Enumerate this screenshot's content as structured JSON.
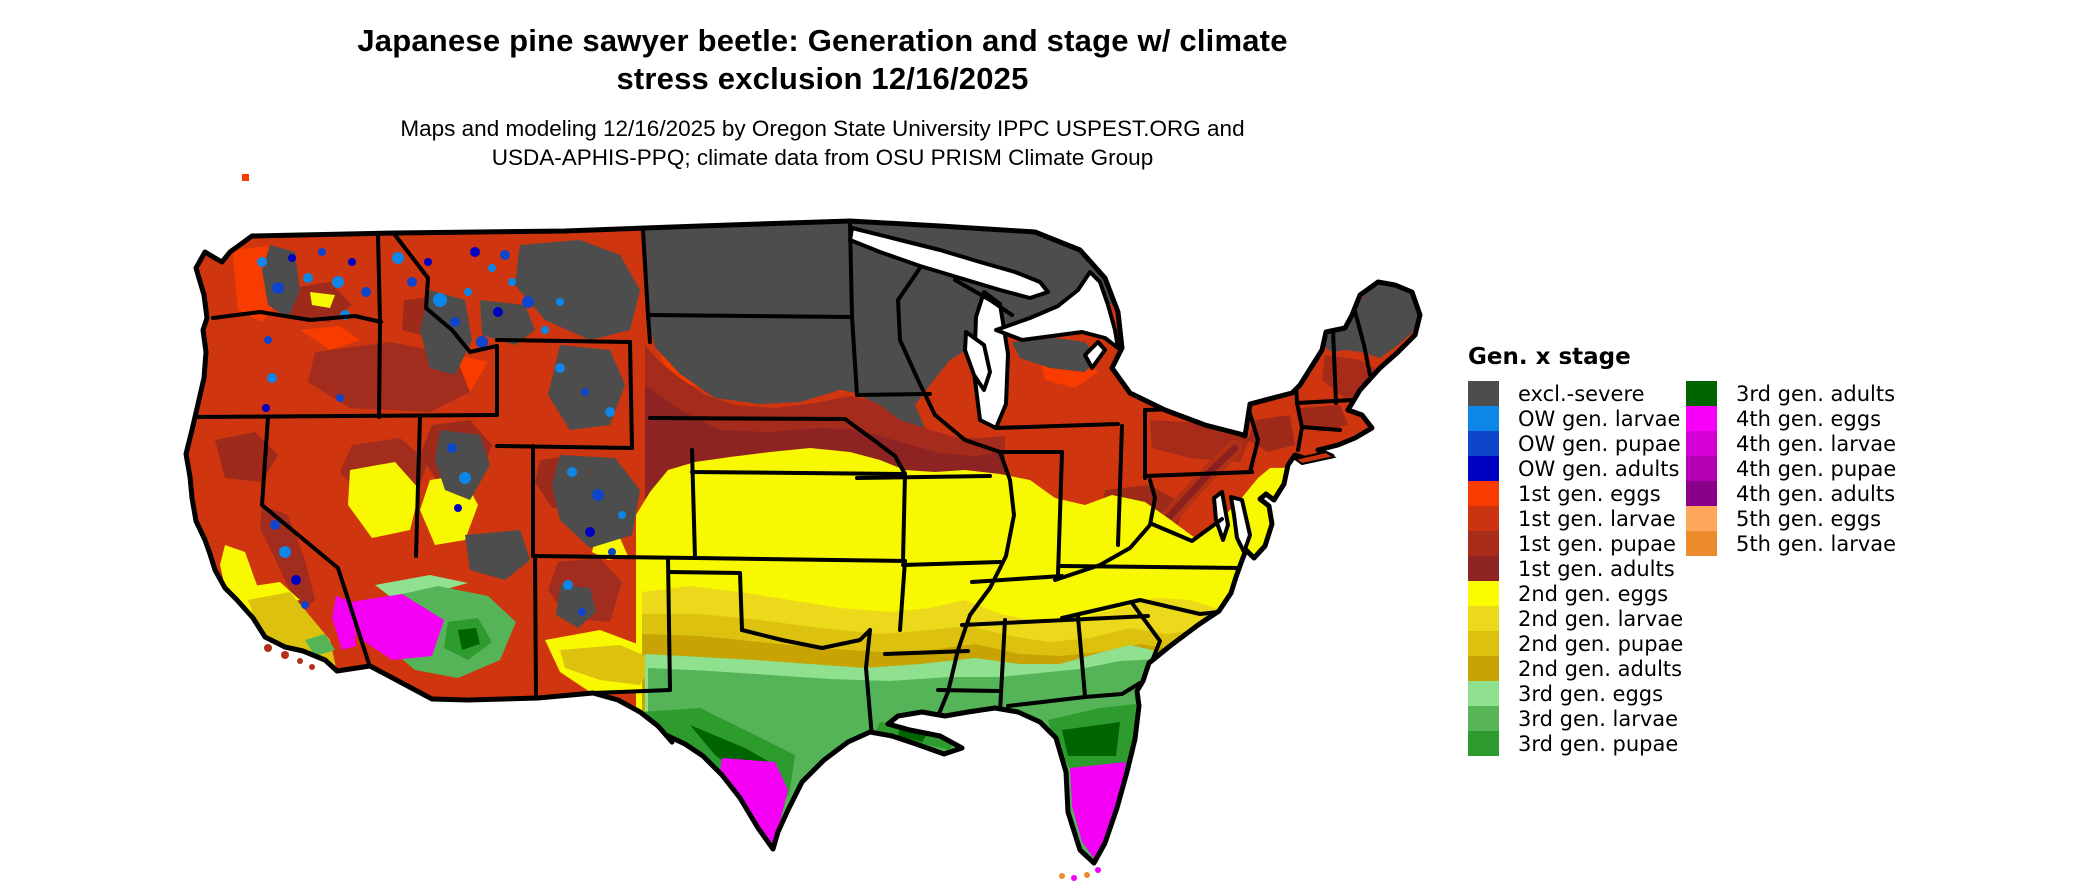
{
  "title": {
    "line1": "Japanese pine sawyer beetle: Generation and stage w/ climate",
    "line2": "stress exclusion 12/16/2025"
  },
  "subtitle": {
    "line1": "Maps and modeling 12/16/2025 by Oregon State University IPPC USPEST.ORG and",
    "line2": "USDA-APHIS-PPQ; climate data from OSU PRISM Climate Group"
  },
  "legend": {
    "title": "Gen. x stage",
    "column1": [
      {
        "label": "excl.-severe",
        "color": "#4D4D4D"
      },
      {
        "label": "OW gen. larvae",
        "color": "#0D86E8"
      },
      {
        "label": "OW gen. pupae",
        "color": "#0F45CC"
      },
      {
        "label": "OW gen. adults",
        "color": "#0000C0"
      },
      {
        "label": "1st gen. eggs",
        "color": "#F83C00"
      },
      {
        "label": "1st gen. larvae",
        "color": "#CC3311"
      },
      {
        "label": "1st gen. pupae",
        "color": "#A92C1B"
      },
      {
        "label": "1st gen. adults",
        "color": "#8E2323"
      },
      {
        "label": "2nd gen. eggs",
        "color": "#FCFC00"
      },
      {
        "label": "2nd gen. larvae",
        "color": "#EDD91C"
      },
      {
        "label": "2nd gen. pupae",
        "color": "#DCC20E"
      },
      {
        "label": "2nd gen. adults",
        "color": "#C7A404"
      },
      {
        "label": "3rd gen. eggs",
        "color": "#8FE08F"
      },
      {
        "label": "3rd gen. larvae",
        "color": "#57B457"
      },
      {
        "label": "3rd gen. pupae",
        "color": "#2E9B2E"
      }
    ],
    "column2": [
      {
        "label": "3rd gen. adults",
        "color": "#006400"
      },
      {
        "label": "4th gen. eggs",
        "color": "#F800F8"
      },
      {
        "label": "4th gen. larvae",
        "color": "#D500D5"
      },
      {
        "label": "4th gen. pupae",
        "color": "#B200B2"
      },
      {
        "label": "4th gen. adults",
        "color": "#8B008B"
      },
      {
        "label": "5th gen. eggs",
        "color": "#FFA85C"
      },
      {
        "label": "5th gen. larvae",
        "color": "#EC8B2D"
      }
    ]
  },
  "map": {
    "region": "contiguous United States"
  }
}
